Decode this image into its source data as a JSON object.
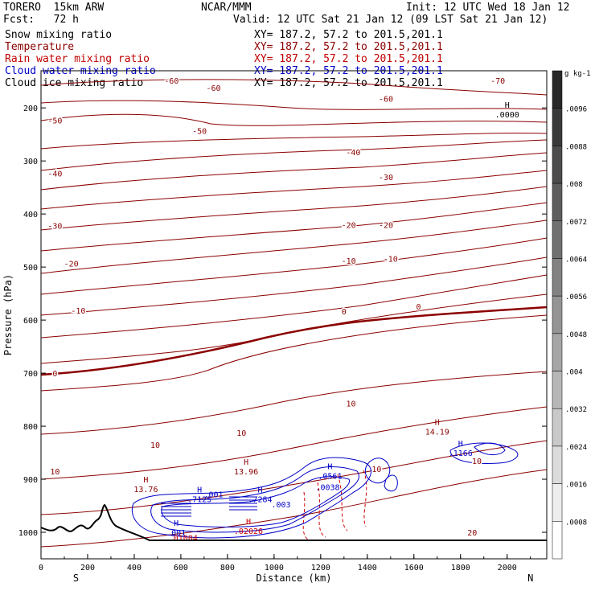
{
  "header": {
    "model": "TORERO  15km ARW",
    "org": "NCAR/MMM",
    "init": "Init: 12 UTC Wed 18 Jan 12",
    "fcst": "Fcst:   72 h",
    "valid": "Valid: 12 UTC Sat 21 Jan 12 (09 LST Sat 21 Jan 12)"
  },
  "fields": [
    {
      "name": "Snow mixing ratio",
      "xy": "XY= 187.2, 57.2 to 201.5,201.1",
      "color": "#000000"
    },
    {
      "name": "Temperature",
      "xy": "XY= 187.2, 57.2 to 201.5,201.1",
      "color": "#8b0000"
    },
    {
      "name": "Rain water mixing ratio",
      "xy": "XY= 187.2, 57.2 to 201.5,201.1",
      "color": "#d00000"
    },
    {
      "name": "Cloud water mixing ratio",
      "xy": "XY= 187.2, 57.2 to 201.5,201.1",
      "color": "#0000c8"
    },
    {
      "name": "Cloud ice mixing ratio",
      "xy": "XY= 187.2, 57.2 to 201.5,201.1",
      "color": "#000000"
    }
  ],
  "chart_data": {
    "type": "contour-cross-section",
    "xlabel": "Distance (km)",
    "ylabel": "Pressure (hPa)",
    "xlim": [
      0,
      2170
    ],
    "ylim": [
      1050,
      130
    ],
    "x_ticks": [
      0,
      200,
      400,
      600,
      800,
      1000,
      1200,
      1400,
      1600,
      1800,
      2000
    ],
    "y_ticks": [
      200,
      300,
      400,
      500,
      600,
      700,
      800,
      900,
      1000
    ],
    "endpoints": {
      "left": "S",
      "right": "N"
    },
    "colorbar": {
      "unit": "g kg-1",
      "ticks": [
        ".0096",
        ".0088",
        ".008",
        ".0072",
        ".0064",
        ".0056",
        ".0048",
        ".004",
        ".0032",
        ".0024",
        ".0016",
        ".0008"
      ]
    },
    "temperature_labels": [
      {
        "text": "-60",
        "x": 560,
        "p": 148
      },
      {
        "text": "-60",
        "x": 740,
        "p": 162
      },
      {
        "text": "-70",
        "x": 1960,
        "p": 148
      },
      {
        "text": "-60",
        "x": 1480,
        "p": 182
      },
      {
        "text": "-50",
        "x": 60,
        "p": 223
      },
      {
        "text": "-50",
        "x": 680,
        "p": 243
      },
      {
        "text": "-40",
        "x": 1340,
        "p": 283
      },
      {
        "text": "-40",
        "x": 60,
        "p": 323
      },
      {
        "text": "-30",
        "x": 1480,
        "p": 330
      },
      {
        "text": "-30",
        "x": 60,
        "p": 422
      },
      {
        "text": "-20",
        "x": 1320,
        "p": 420
      },
      {
        "text": "-20",
        "x": 1480,
        "p": 420
      },
      {
        "text": "-20",
        "x": 130,
        "p": 493
      },
      {
        "text": "-10",
        "x": 1320,
        "p": 488
      },
      {
        "text": "-10",
        "x": 1500,
        "p": 484
      },
      {
        "text": "-10",
        "x": 160,
        "p": 582
      },
      {
        "text": "0",
        "x": 1300,
        "p": 583
      },
      {
        "text": "0",
        "x": 1620,
        "p": 574
      },
      {
        "text": "0",
        "x": 60,
        "p": 700
      },
      {
        "text": "10",
        "x": 1330,
        "p": 757
      },
      {
        "text": "10",
        "x": 860,
        "p": 812
      },
      {
        "text": "10",
        "x": 490,
        "p": 835
      },
      {
        "text": "10",
        "x": 60,
        "p": 885
      },
      {
        "text": "10",
        "x": 1440,
        "p": 880
      },
      {
        "text": "10",
        "x": 1870,
        "p": 865
      },
      {
        "text": "20",
        "x": 1850,
        "p": 1000
      }
    ],
    "maxima": [
      {
        "label": "H",
        "value": ".0000",
        "x": 2000,
        "p": 212
      },
      {
        "label": "H",
        "value": "14.19",
        "x": 1700,
        "p": 810
      },
      {
        "label": "H",
        "value": "13.96",
        "x": 880,
        "p": 885
      },
      {
        "label": "H",
        "value": "13.76",
        "x": 450,
        "p": 918
      },
      {
        "label": "H",
        "value": ".0561",
        "x": 1240,
        "p": 893
      },
      {
        "label": "H",
        "value": ".1166",
        "x": 1800,
        "p": 850
      },
      {
        "label": "H",
        "value": ".7125",
        "x": 680,
        "p": 937
      },
      {
        "label": "H",
        "value": ".7284",
        "x": 940,
        "p": 937
      },
      {
        "label": "",
        "value": ".001",
        "x": 740,
        "p": 928
      },
      {
        "label": "",
        "value": ".003",
        "x": 1030,
        "p": 947
      },
      {
        "label": "",
        "value": ".0038",
        "x": 1230,
        "p": 914
      },
      {
        "label": "H",
        "value": ".001",
        "x": 580,
        "p": 1000
      },
      {
        "label": "",
        "value": ".01004",
        "x": 610,
        "p": 1010
      },
      {
        "label": "H",
        "value": ".02026",
        "x": 890,
        "p": 997
      }
    ]
  }
}
